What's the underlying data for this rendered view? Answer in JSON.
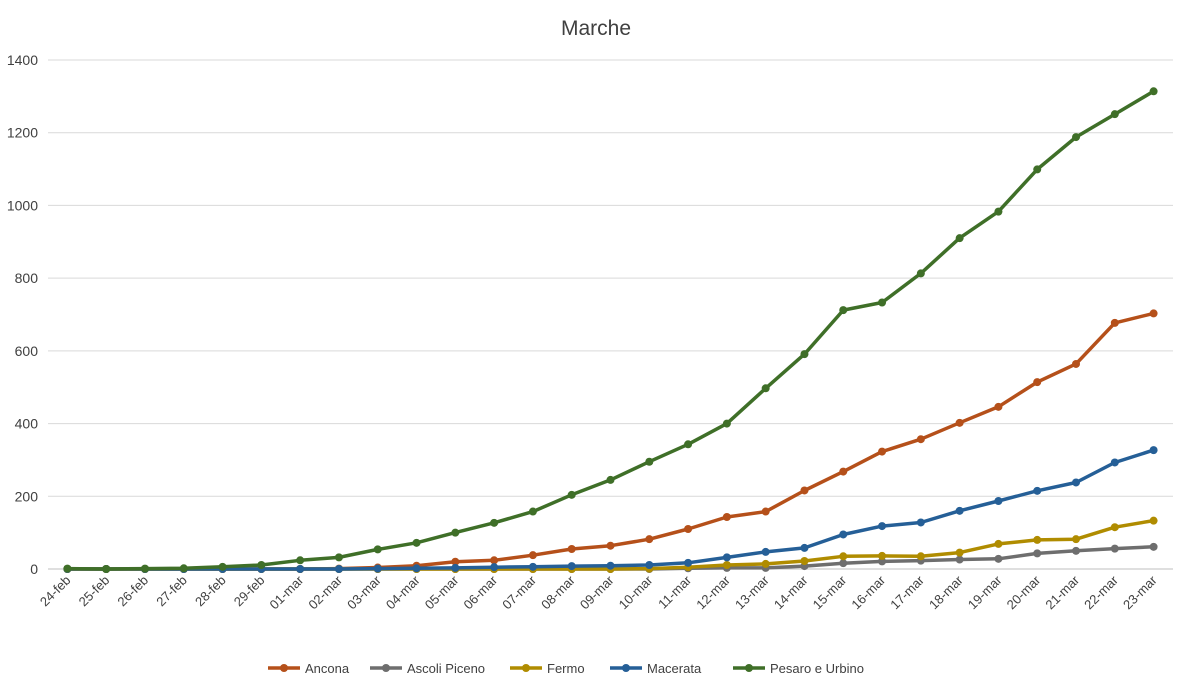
{
  "chart_data": {
    "type": "line",
    "title": "Marche",
    "xlabel": "",
    "ylabel": "",
    "ylim": [
      0,
      1400
    ],
    "yticks": [
      "0",
      "200",
      "400",
      "600",
      "800",
      "1000",
      "1200",
      "1400"
    ],
    "grid": true,
    "legend_position": "bottom",
    "categories": [
      "24-feb",
      "25-feb",
      "26-feb",
      "27-feb",
      "28-feb",
      "29-feb",
      "01-mar",
      "02-mar",
      "03-mar",
      "04-mar",
      "05-mar",
      "06-mar",
      "07-mar",
      "08-mar",
      "09-mar",
      "10-mar",
      "11-mar",
      "12-mar",
      "13-mar",
      "14-mar",
      "15-mar",
      "16-mar",
      "17-mar",
      "18-mar",
      "19-mar",
      "20-mar",
      "21-mar",
      "22-mar",
      "23-mar"
    ],
    "series": [
      {
        "name": "Ancona",
        "color": "#b5501a",
        "values": [
          0,
          0,
          0,
          0,
          0,
          0,
          0,
          1,
          4,
          9,
          20,
          24,
          38,
          55,
          64,
          82,
          110,
          143,
          158,
          216,
          268,
          323,
          357,
          402,
          446,
          514,
          564,
          677,
          703
        ]
      },
      {
        "name": "Ascoli Piceno",
        "color": "#6e6e6e",
        "values": [
          0,
          0,
          0,
          0,
          0,
          0,
          0,
          0,
          0,
          0,
          0,
          0,
          0,
          0,
          0,
          0,
          2,
          3,
          3,
          8,
          16,
          21,
          23,
          26,
          28,
          43,
          50,
          56,
          61
        ]
      },
      {
        "name": "Fermo",
        "color": "#b08c00",
        "values": [
          0,
          0,
          0,
          0,
          0,
          0,
          0,
          0,
          0,
          0,
          0,
          0,
          0,
          0,
          0,
          1,
          5,
          11,
          14,
          22,
          35,
          36,
          35,
          45,
          69,
          80,
          82,
          115,
          133
        ]
      },
      {
        "name": "Macerata",
        "color": "#255f97",
        "values": [
          0,
          0,
          0,
          0,
          0,
          0,
          0,
          0,
          1,
          2,
          3,
          5,
          6,
          8,
          9,
          11,
          17,
          32,
          47,
          58,
          95,
          118,
          128,
          160,
          187,
          215,
          238,
          293,
          327
        ]
      },
      {
        "name": "Pesaro e Urbino",
        "color": "#3f6f28",
        "values": [
          1,
          0,
          1,
          2,
          6,
          11,
          24,
          32,
          54,
          72,
          100,
          127,
          158,
          204,
          245,
          295,
          343,
          400,
          497,
          591,
          712,
          733,
          813,
          910,
          983,
          1099,
          1188,
          1251,
          1314
        ]
      }
    ]
  }
}
